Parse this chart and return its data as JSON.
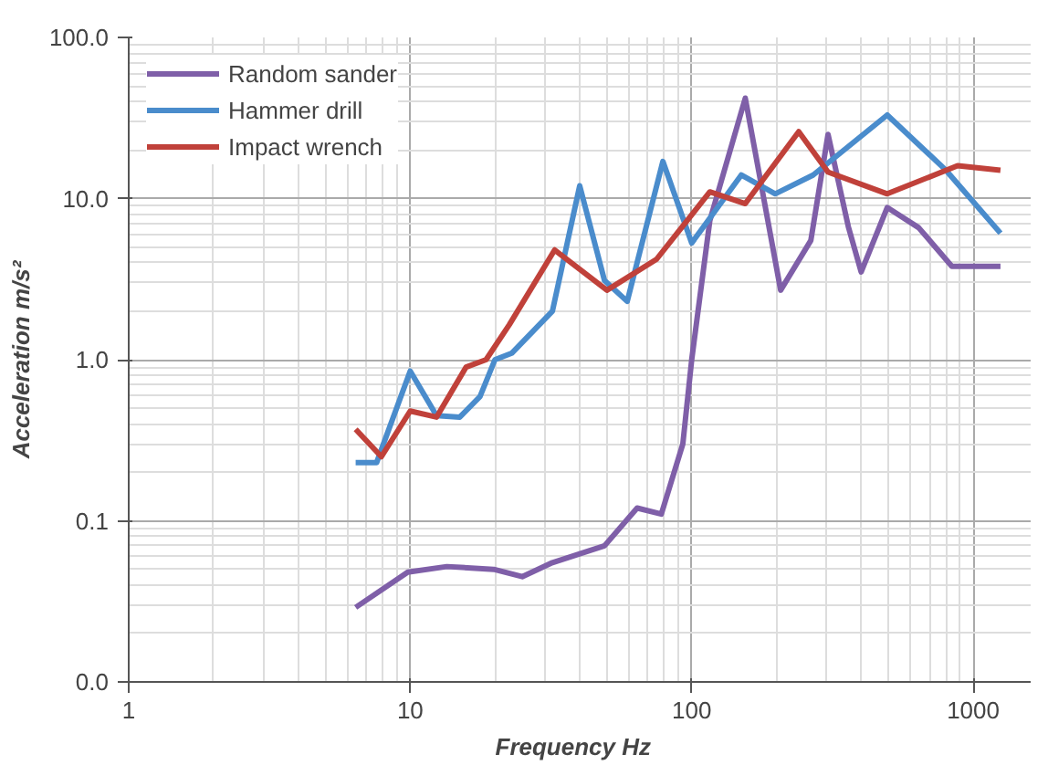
{
  "chart_data": {
    "type": "line",
    "xlabel": "Frequency   Hz",
    "ylabel": "Acceleration m/s²",
    "log": "xy",
    "grid": true,
    "legend": "top left",
    "marker": "none",
    "line_style": "solid",
    "xlim": [
      1,
      1600
    ],
    "xticks": [
      1,
      10,
      100,
      1000
    ],
    "ylim": [
      0.01,
      100
    ],
    "yticks": [
      {
        "value": 0.01,
        "label": "0.0"
      },
      {
        "value": 0.1,
        "label": "0.1"
      },
      {
        "value": 1,
        "label": "1.0"
      },
      {
        "value": 10,
        "label": "10.0"
      },
      {
        "value": 100,
        "label": "100.0"
      }
    ],
    "series": [
      {
        "name": "Random sander",
        "color": "#7f5fa8",
        "x": [
          6.4,
          9.8,
          13.5,
          19.8,
          25,
          32,
          49,
          64,
          78,
          93,
          100,
          116,
          155,
          207,
          265,
          305,
          360,
          400,
          495,
          640,
          840,
          1250
        ],
        "values": [
          0.029,
          0.048,
          0.052,
          0.05,
          0.045,
          0.055,
          0.07,
          0.12,
          0.11,
          0.3,
          1.0,
          7.3,
          42,
          2.7,
          5.5,
          25,
          6.7,
          3.5,
          8.8,
          6.6,
          3.8,
          3.8
        ]
      },
      {
        "name": "Hammer drill",
        "color": "#4a8ccc",
        "x": [
          6.4,
          7.6,
          10,
          12.4,
          15,
          17.7,
          20,
          23,
          32,
          40,
          49,
          59,
          79,
          100,
          150,
          198,
          270,
          495,
          800,
          1250
        ],
        "values": [
          0.23,
          0.23,
          0.85,
          0.45,
          0.44,
          0.59,
          1.0,
          1.1,
          2.0,
          12,
          3.1,
          2.3,
          17,
          5.3,
          14,
          10.7,
          14,
          33,
          15,
          6.1
        ]
      },
      {
        "name": "Impact wrench",
        "color": "#c0413a",
        "x": [
          6.4,
          7.9,
          10,
          12.4,
          15.8,
          18.6,
          22.5,
          32.6,
          50,
          75,
          116,
          155,
          240,
          305,
          495,
          880,
          1250
        ],
        "values": [
          0.37,
          0.25,
          0.48,
          0.44,
          0.9,
          1.0,
          1.65,
          4.8,
          2.7,
          4.2,
          11,
          9.3,
          26,
          14.6,
          10.7,
          16,
          15
        ]
      }
    ]
  }
}
